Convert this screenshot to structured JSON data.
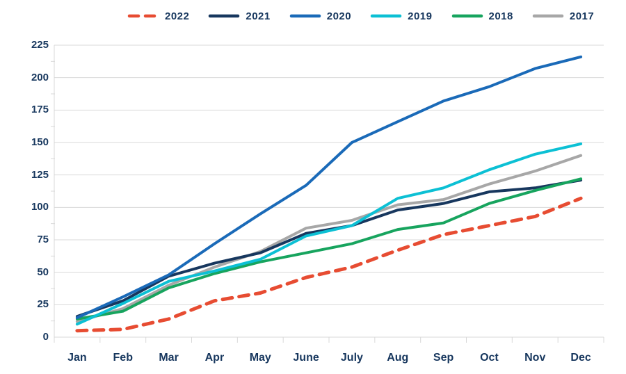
{
  "chart_data": {
    "type": "line",
    "categories": [
      "Jan",
      "Feb",
      "Mar",
      "Apr",
      "May",
      "June",
      "July",
      "Aug",
      "Sep",
      "Oct",
      "Nov",
      "Dec"
    ],
    "y_ticks": [
      0,
      25,
      50,
      75,
      100,
      125,
      150,
      175,
      200,
      225
    ],
    "ylim": [
      0,
      225
    ],
    "xlabel": "",
    "ylabel": "",
    "title": "",
    "grid": "horizontal",
    "legend_position": "top",
    "series": [
      {
        "name": "2022",
        "color": "#e74c32",
        "style": "dashed",
        "values": [
          5,
          6,
          14,
          28,
          34,
          46,
          54,
          67,
          79,
          86,
          93,
          107
        ]
      },
      {
        "name": "2021",
        "color": "#17375e",
        "style": "solid",
        "values": [
          16,
          28,
          47,
          57,
          65,
          80,
          86,
          98,
          103,
          112,
          115,
          121
        ]
      },
      {
        "name": "2020",
        "color": "#1a6ab8",
        "style": "solid",
        "values": [
          15,
          31,
          48,
          72,
          95,
          117,
          150,
          166,
          182,
          193,
          207,
          216
        ]
      },
      {
        "name": "2019",
        "color": "#0cc0d4",
        "style": "solid",
        "values": [
          10,
          26,
          43,
          51,
          60,
          78,
          86,
          107,
          115,
          129,
          141,
          149
        ]
      },
      {
        "name": "2018",
        "color": "#17a45e",
        "style": "solid",
        "values": [
          14,
          20,
          38,
          49,
          58,
          65,
          72,
          83,
          88,
          103,
          113,
          122
        ]
      },
      {
        "name": "2017",
        "color": "#a7a7a7",
        "style": "solid",
        "values": [
          12,
          22,
          40,
          54,
          66,
          84,
          90,
          102,
          106,
          118,
          128,
          140
        ]
      }
    ],
    "colors": {
      "grid": "#d9d9d9",
      "axis_text": "#17375e",
      "background": "#ffffff"
    }
  }
}
